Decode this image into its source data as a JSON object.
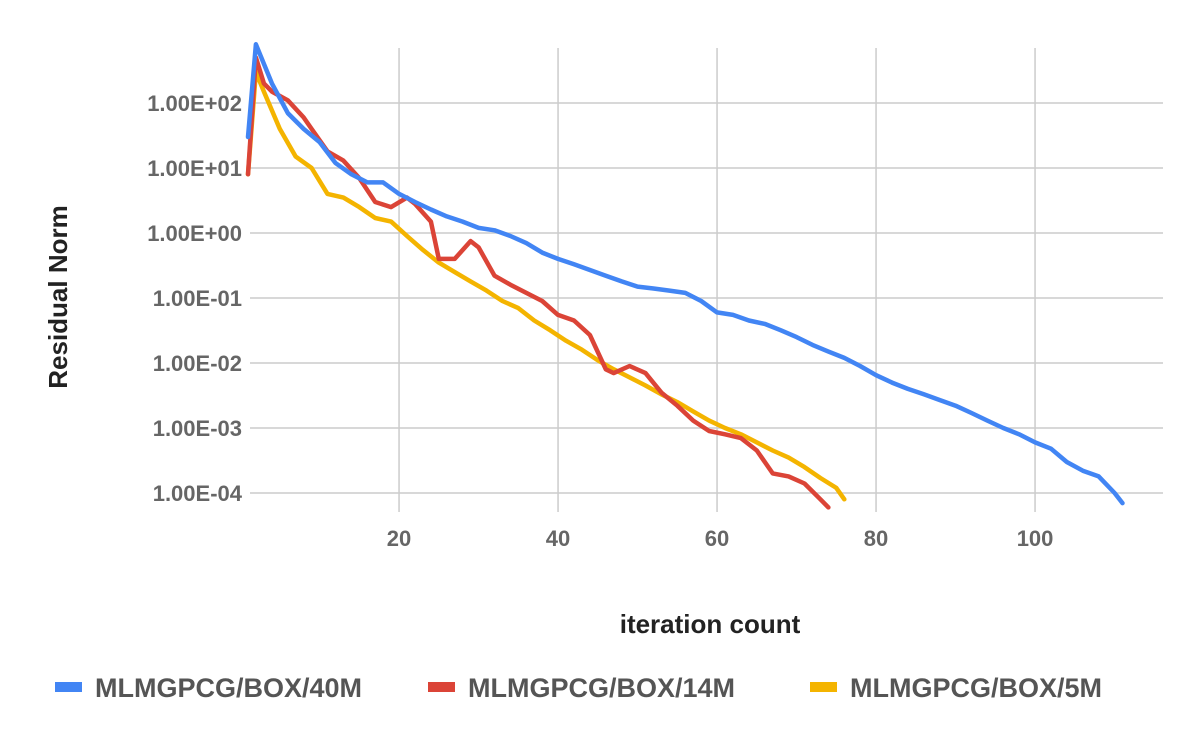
{
  "chart_data": {
    "type": "line",
    "title": "",
    "xlabel": "iteration count",
    "ylabel": "Residual Norm",
    "xlim": [
      1,
      115
    ],
    "ylim": [
      5e-05,
      800
    ],
    "y_scale": "log",
    "grid": true,
    "legend_position": "bottom",
    "x_ticks": [
      20,
      40,
      60,
      80,
      100
    ],
    "x_tick_labels": [
      "20",
      "40",
      "60",
      "80",
      "100"
    ],
    "y_ticks": [
      0.0001,
      0.001,
      0.01,
      0.1,
      1,
      10,
      100
    ],
    "y_tick_labels": [
      "1.00E-04",
      "1.00E-03",
      "1.00E-02",
      "1.00E-01",
      "1.00E+00",
      "1.00E+01",
      "1.00E+02"
    ],
    "series": [
      {
        "name": "MLMGPCG/BOX/40M",
        "color": "#4285f4",
        "x": [
          1,
          2,
          4,
          6,
          8,
          10,
          12,
          14,
          16,
          18,
          20,
          22,
          24,
          26,
          28,
          30,
          32,
          34,
          36,
          38,
          40,
          42,
          44,
          46,
          48,
          50,
          52,
          54,
          56,
          58,
          60,
          62,
          64,
          66,
          68,
          70,
          72,
          74,
          76,
          78,
          80,
          82,
          84,
          86,
          88,
          90,
          92,
          94,
          96,
          98,
          100,
          102,
          104,
          106,
          108,
          110,
          111
        ],
        "y": [
          30,
          800,
          200,
          70,
          40,
          25,
          12,
          8,
          6,
          6,
          4,
          3,
          2.3,
          1.8,
          1.5,
          1.2,
          1.1,
          0.9,
          0.7,
          0.5,
          0.4,
          0.33,
          0.27,
          0.22,
          0.18,
          0.15,
          0.14,
          0.13,
          0.12,
          0.09,
          0.06,
          0.055,
          0.045,
          0.04,
          0.032,
          0.025,
          0.019,
          0.015,
          0.012,
          0.009,
          0.0065,
          0.005,
          0.004,
          0.0033,
          0.0027,
          0.0022,
          0.0017,
          0.0013,
          0.001,
          0.0008,
          0.0006,
          0.00048,
          0.0003,
          0.00022,
          0.00018,
          0.0001,
          7e-05
        ]
      },
      {
        "name": "MLMGPCG/BOX/14M",
        "color": "#db4437",
        "x": [
          1,
          2,
          3,
          4,
          6,
          8,
          9,
          11,
          13,
          15,
          17,
          19,
          21,
          22,
          24,
          25,
          27,
          29,
          30,
          32,
          34,
          36,
          38,
          40,
          42,
          44,
          46,
          47,
          49,
          51,
          53,
          55,
          57,
          59,
          61,
          63,
          65,
          67,
          69,
          71,
          73,
          74
        ],
        "y": [
          8,
          500,
          200,
          150,
          110,
          60,
          40,
          18,
          13,
          7,
          3,
          2.5,
          3.5,
          2.8,
          1.5,
          0.4,
          0.4,
          0.75,
          0.6,
          0.22,
          0.16,
          0.12,
          0.09,
          0.055,
          0.045,
          0.027,
          0.008,
          0.007,
          0.009,
          0.007,
          0.0035,
          0.0022,
          0.0013,
          0.0009,
          0.0008,
          0.0007,
          0.00045,
          0.0002,
          0.00018,
          0.00014,
          8e-05,
          6e-05
        ]
      },
      {
        "name": "MLMGPCG/BOX/5M",
        "color": "#f4b400",
        "x": [
          1,
          2,
          3,
          5,
          7,
          9,
          11,
          13,
          15,
          17,
          19,
          21,
          23,
          25,
          27,
          29,
          31,
          33,
          35,
          37,
          39,
          41,
          43,
          45,
          47,
          49,
          51,
          53,
          55,
          57,
          59,
          61,
          63,
          65,
          67,
          69,
          71,
          73,
          75,
          76
        ],
        "y": [
          8,
          300,
          150,
          40,
          15,
          10,
          4,
          3.5,
          2.5,
          1.7,
          1.5,
          0.9,
          0.55,
          0.35,
          0.25,
          0.18,
          0.13,
          0.09,
          0.07,
          0.045,
          0.032,
          0.022,
          0.016,
          0.011,
          0.008,
          0.006,
          0.0045,
          0.0033,
          0.0025,
          0.0018,
          0.0013,
          0.001,
          0.0008,
          0.0006,
          0.00045,
          0.00035,
          0.00025,
          0.00017,
          0.00012,
          8e-05
        ]
      }
    ]
  }
}
